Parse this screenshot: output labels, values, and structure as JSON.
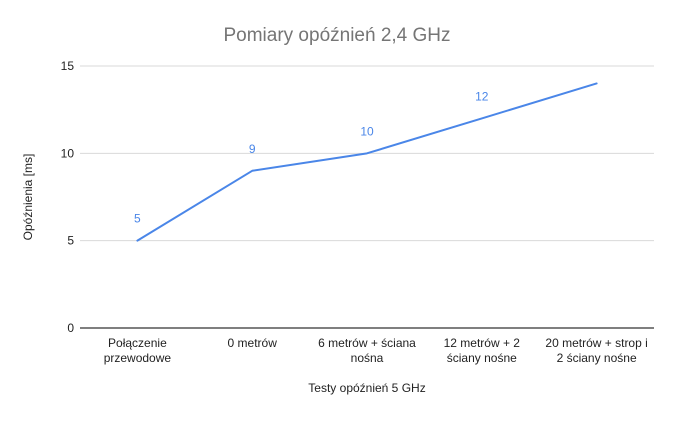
{
  "chart_data": {
    "type": "line",
    "title": "Pomiary opóźnień 2,4 GHz",
    "xlabel": "Testy opóźnień 5 GHz",
    "ylabel": "Opóźnienia [ms]",
    "categories": [
      [
        "Połączenie",
        "przewodowe"
      ],
      [
        "0 metrów"
      ],
      [
        "6 metrów + ściana",
        "nośna"
      ],
      [
        "12 metrów + 2",
        "ściany nośne"
      ],
      [
        "20 metrów + strop i",
        "2 ściany nośne"
      ]
    ],
    "series": [
      {
        "values": [
          5,
          9,
          10,
          12,
          14
        ],
        "data_labels": [
          "5",
          "9",
          "10",
          "12",
          ""
        ]
      }
    ],
    "ylim": [
      0,
      15
    ],
    "yticks": [
      "0",
      "5",
      "10",
      "15"
    ],
    "grid": true,
    "legend": "none",
    "colors": {
      "line": "#4a86e8",
      "label": "#4a86e8",
      "grid": "#d9d9d9",
      "axis": "#333333",
      "title": "#757575",
      "text": "#222222"
    }
  }
}
